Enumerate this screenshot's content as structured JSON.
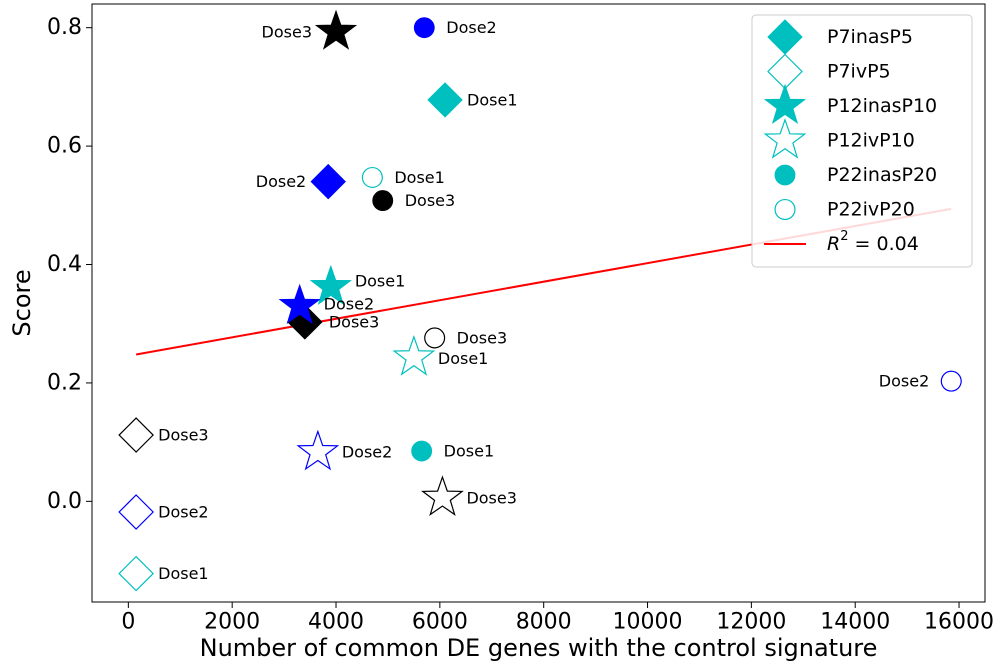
{
  "chart_data": {
    "type": "scatter",
    "xlabel": "Number of common DE genes with the control signature",
    "ylabel": "Score",
    "xlim": [
      -700,
      16500
    ],
    "ylim": [
      -0.17,
      0.84
    ],
    "xticks": [
      0,
      2000,
      4000,
      6000,
      8000,
      10000,
      12000,
      14000,
      16000
    ],
    "yticks": [
      0.0,
      0.2,
      0.4,
      0.6,
      0.8
    ],
    "ytick_labels": [
      "0.0",
      "0.2",
      "0.4",
      "0.6",
      "0.8"
    ],
    "grid": false,
    "legend_position": "top-right",
    "colors": {
      "Dose1": "#00bfbf",
      "Dose2": "#0000ff",
      "Dose3": "#000000",
      "fit": "#ff0000"
    },
    "series": [
      {
        "name": "P7inasP5",
        "marker": "diamond",
        "fill": "filled",
        "points": [
          {
            "dose": "Dose1",
            "x": 6100,
            "y": 0.678
          },
          {
            "dose": "Dose2",
            "x": 3850,
            "y": 0.54
          },
          {
            "dose": "Dose3",
            "x": 3400,
            "y": 0.303
          }
        ]
      },
      {
        "name": "P7ivP5",
        "marker": "diamond",
        "fill": "open",
        "points": [
          {
            "dose": "Dose1",
            "x": 150,
            "y": -0.122
          },
          {
            "dose": "Dose2",
            "x": 150,
            "y": -0.018
          },
          {
            "dose": "Dose3",
            "x": 150,
            "y": 0.112
          }
        ]
      },
      {
        "name": "P12inasP10",
        "marker": "star",
        "fill": "filled",
        "points": [
          {
            "dose": "Dose1",
            "x": 3900,
            "y": 0.362
          },
          {
            "dose": "Dose2",
            "x": 3300,
            "y": 0.33
          },
          {
            "dose": "Dose3",
            "x": 4000,
            "y": 0.793
          }
        ]
      },
      {
        "name": "P12ivP10",
        "marker": "star",
        "fill": "open",
        "points": [
          {
            "dose": "Dose1",
            "x": 5500,
            "y": 0.243
          },
          {
            "dose": "Dose2",
            "x": 3650,
            "y": 0.083
          },
          {
            "dose": "Dose3",
            "x": 6050,
            "y": 0.006
          }
        ]
      },
      {
        "name": "P22inasP20",
        "marker": "circle",
        "fill": "filled",
        "points": [
          {
            "dose": "Dose1",
            "x": 5650,
            "y": 0.085
          },
          {
            "dose": "Dose2",
            "x": 5700,
            "y": 0.8
          },
          {
            "dose": "Dose3",
            "x": 4900,
            "y": 0.508
          }
        ]
      },
      {
        "name": "P22ivP20",
        "marker": "circle",
        "fill": "open",
        "points": [
          {
            "dose": "Dose1",
            "x": 4700,
            "y": 0.547
          },
          {
            "dose": "Dose2",
            "x": 15850,
            "y": 0.203
          },
          {
            "dose": "Dose3",
            "x": 5900,
            "y": 0.276
          }
        ]
      }
    ],
    "fit_line": {
      "name": "R^2 = 0.04",
      "r2": "0.04",
      "x": [
        150,
        15850
      ],
      "y": [
        0.248,
        0.494
      ]
    }
  }
}
